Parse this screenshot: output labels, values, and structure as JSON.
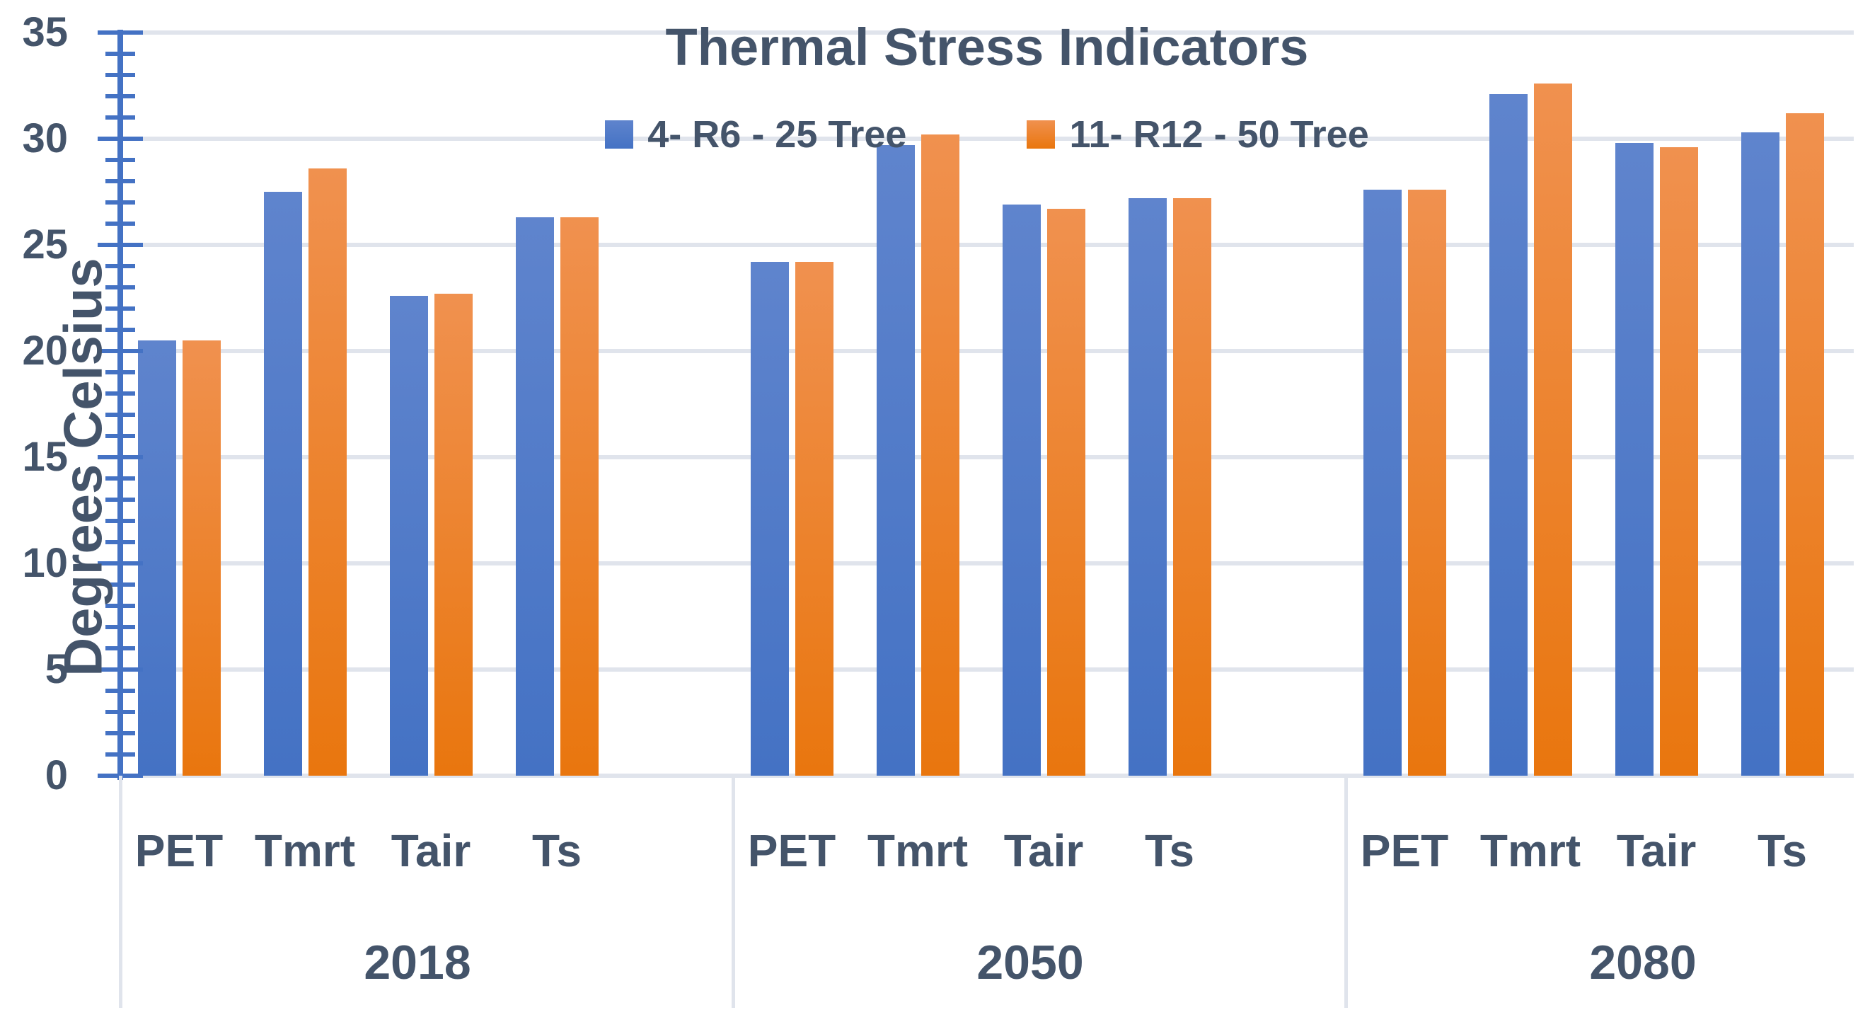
{
  "title": "Thermal Stress Indicators",
  "y_axis": {
    "label": "Degrees Celsius",
    "tick_labels": [
      "35",
      "30",
      "25",
      "20",
      "15",
      "10",
      "5",
      "0"
    ]
  },
  "legend": {
    "items": [
      {
        "label": "4- R6 - 25 Tree"
      },
      {
        "label": "11- R12 - 50 Tree"
      }
    ]
  },
  "colors": {
    "text": "#44546A",
    "axis_blue": "#4472C4",
    "gridline": "#E0E4EC",
    "series1_fill_top": "#5F84CD",
    "series1_fill_bottom": "#4472C4",
    "series2_fill_top": "#F0914F",
    "series2_fill_bottom": "#E9760E"
  },
  "chart_data": {
    "type": "bar",
    "title": "Thermal Stress Indicators",
    "xlabel": "",
    "ylabel": "Degrees Celsius",
    "ylim": [
      0,
      35
    ],
    "y_major_step": 5,
    "y_minor_tick_step": 1,
    "grid": true,
    "legend_position": "top-center-inside",
    "groups": [
      "2018",
      "2050",
      "2080"
    ],
    "categories": [
      "PET",
      "Tmrt",
      "Tair",
      "Ts"
    ],
    "series": [
      {
        "name": "4- R6 - 25 Tree",
        "color": "#4472C4",
        "values": [
          [
            20.5,
            27.5,
            22.6,
            26.3
          ],
          [
            24.2,
            29.7,
            26.9,
            27.2
          ],
          [
            27.6,
            32.1,
            29.8,
            30.3
          ]
        ]
      },
      {
        "name": "11- R12 - 50 Tree",
        "color": "#ED7D31",
        "values": [
          [
            20.5,
            28.6,
            22.7,
            26.3
          ],
          [
            24.2,
            30.2,
            26.7,
            27.2
          ],
          [
            27.6,
            32.6,
            29.6,
            31.2
          ]
        ]
      }
    ]
  }
}
